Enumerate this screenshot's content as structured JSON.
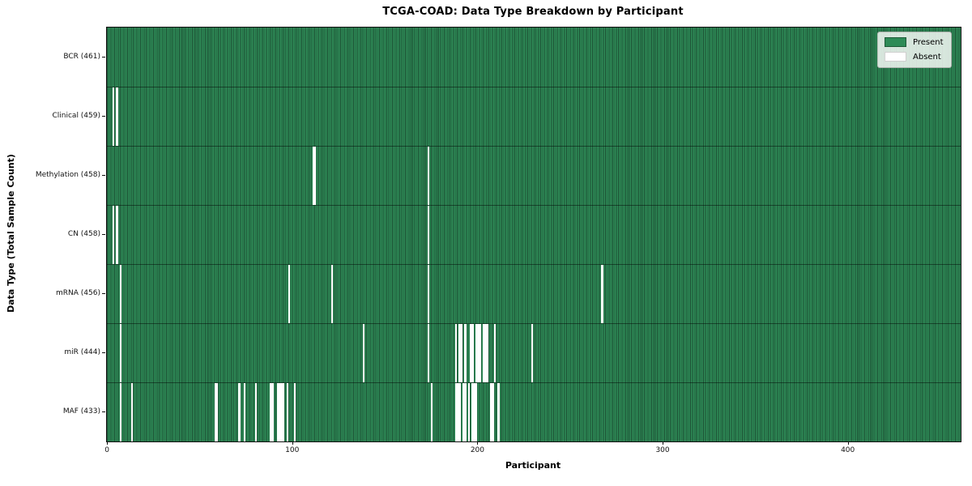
{
  "chart_data": {
    "type": "heatmap",
    "title": "TCGA-COAD: Data Type Breakdown by Participant",
    "xlabel": "Participant",
    "ylabel": "Data Type (Total Sample Count)",
    "x_axis": {
      "unit": "participant index",
      "range": [
        0,
        461
      ],
      "ticks": [
        0,
        100,
        200,
        300,
        400
      ]
    },
    "total_participants": 461,
    "legend": [
      {
        "label": "Present",
        "color": "#2e8b57"
      },
      {
        "label": "Absent",
        "color": "#ffffff"
      }
    ],
    "colors": {
      "present": "#2e8b57",
      "bar_edge": "#1c4f33",
      "absent": "#ffffff"
    },
    "rows": [
      {
        "label": "BCR (461)",
        "data_type": "BCR",
        "present_count": 461,
        "absent_participants": []
      },
      {
        "label": "Clinical (459)",
        "data_type": "Clinical",
        "present_count": 459,
        "absent_participants": [
          3,
          5
        ]
      },
      {
        "label": "Methylation (458)",
        "data_type": "Methylation",
        "present_count": 458,
        "absent_participants": [
          111,
          112,
          173
        ]
      },
      {
        "label": "CN (458)",
        "data_type": "CN",
        "present_count": 458,
        "absent_participants": [
          3,
          5,
          173
        ]
      },
      {
        "label": "mRNA (456)",
        "data_type": "mRNA",
        "present_count": 456,
        "absent_participants": [
          7,
          98,
          121,
          173,
          267
        ]
      },
      {
        "label": "miR (444)",
        "data_type": "miR",
        "present_count": 444,
        "absent_participants": [
          7,
          138,
          173,
          188,
          190,
          191,
          193,
          196,
          197,
          199,
          200,
          201,
          203,
          204,
          205,
          209,
          229
        ]
      },
      {
        "label": "MAF (433)",
        "data_type": "MAF",
        "present_count": 433,
        "absent_participants": [
          7,
          13,
          58,
          59,
          71,
          74,
          80,
          88,
          89,
          92,
          93,
          94,
          95,
          97,
          101,
          175,
          188,
          189,
          190,
          192,
          193,
          195,
          197,
          198,
          199,
          207,
          208,
          211
        ]
      }
    ]
  }
}
